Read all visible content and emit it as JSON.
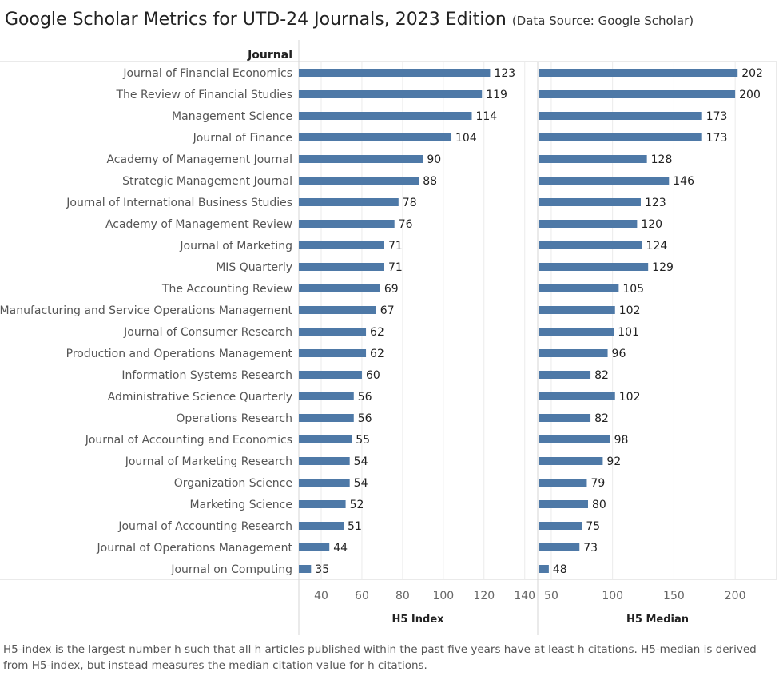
{
  "title": "Google Scholar Metrics for UTD-24 Journals, 2023 Edition",
  "source": "(Data Source: Google Scholar)",
  "footnote": "H5-index is the largest number h such that all h articles published within the past five years have at least h citations. H5-median is derived from H5-index, but instead measures the median citation value for h citations.",
  "colors": {
    "bar": "#4e79a7",
    "grid": "#ebebeb",
    "border": "#d4d4d4"
  },
  "chart_data": {
    "type": "bar",
    "orientation": "horizontal",
    "row_header": "Journal",
    "categories": [
      "Journal of Financial Economics",
      "The Review of Financial Studies",
      "Management Science",
      "Journal of Finance",
      "Academy of Management Journal",
      "Strategic Management Journal",
      "Journal of International Business Studies",
      "Academy of Management Review",
      "Journal of Marketing",
      "MIS Quarterly",
      "The Accounting Review",
      "Manufacturing and Service Operations Management",
      "Journal of Consumer Research",
      "Production and Operations Management",
      "Information Systems Research",
      "Administrative Science Quarterly",
      "Operations Research",
      "Journal of Accounting and Economics",
      "Journal of Marketing Research",
      "Organization Science",
      "Marketing Science",
      "Journal of Accounting Research",
      "Journal of Operations Management",
      "Journal on Computing"
    ],
    "series": [
      {
        "name": "H5 Index",
        "xlabel": "H5 Index",
        "xlim": [
          29,
          146
        ],
        "ticks": [
          40,
          60,
          80,
          100,
          120,
          140
        ],
        "values": [
          123,
          119,
          114,
          104,
          90,
          88,
          78,
          76,
          71,
          71,
          69,
          67,
          62,
          62,
          60,
          56,
          56,
          55,
          54,
          54,
          52,
          51,
          44,
          35
        ]
      },
      {
        "name": "H5 Median",
        "xlabel": "H5 Median",
        "xlim": [
          39.6,
          233.8
        ],
        "ticks": [
          50,
          100,
          150,
          200
        ],
        "values": [
          202,
          200,
          173,
          173,
          128,
          146,
          123,
          120,
          124,
          129,
          105,
          102,
          101,
          96,
          82,
          102,
          82,
          98,
          92,
          79,
          80,
          75,
          73,
          48
        ]
      }
    ]
  }
}
